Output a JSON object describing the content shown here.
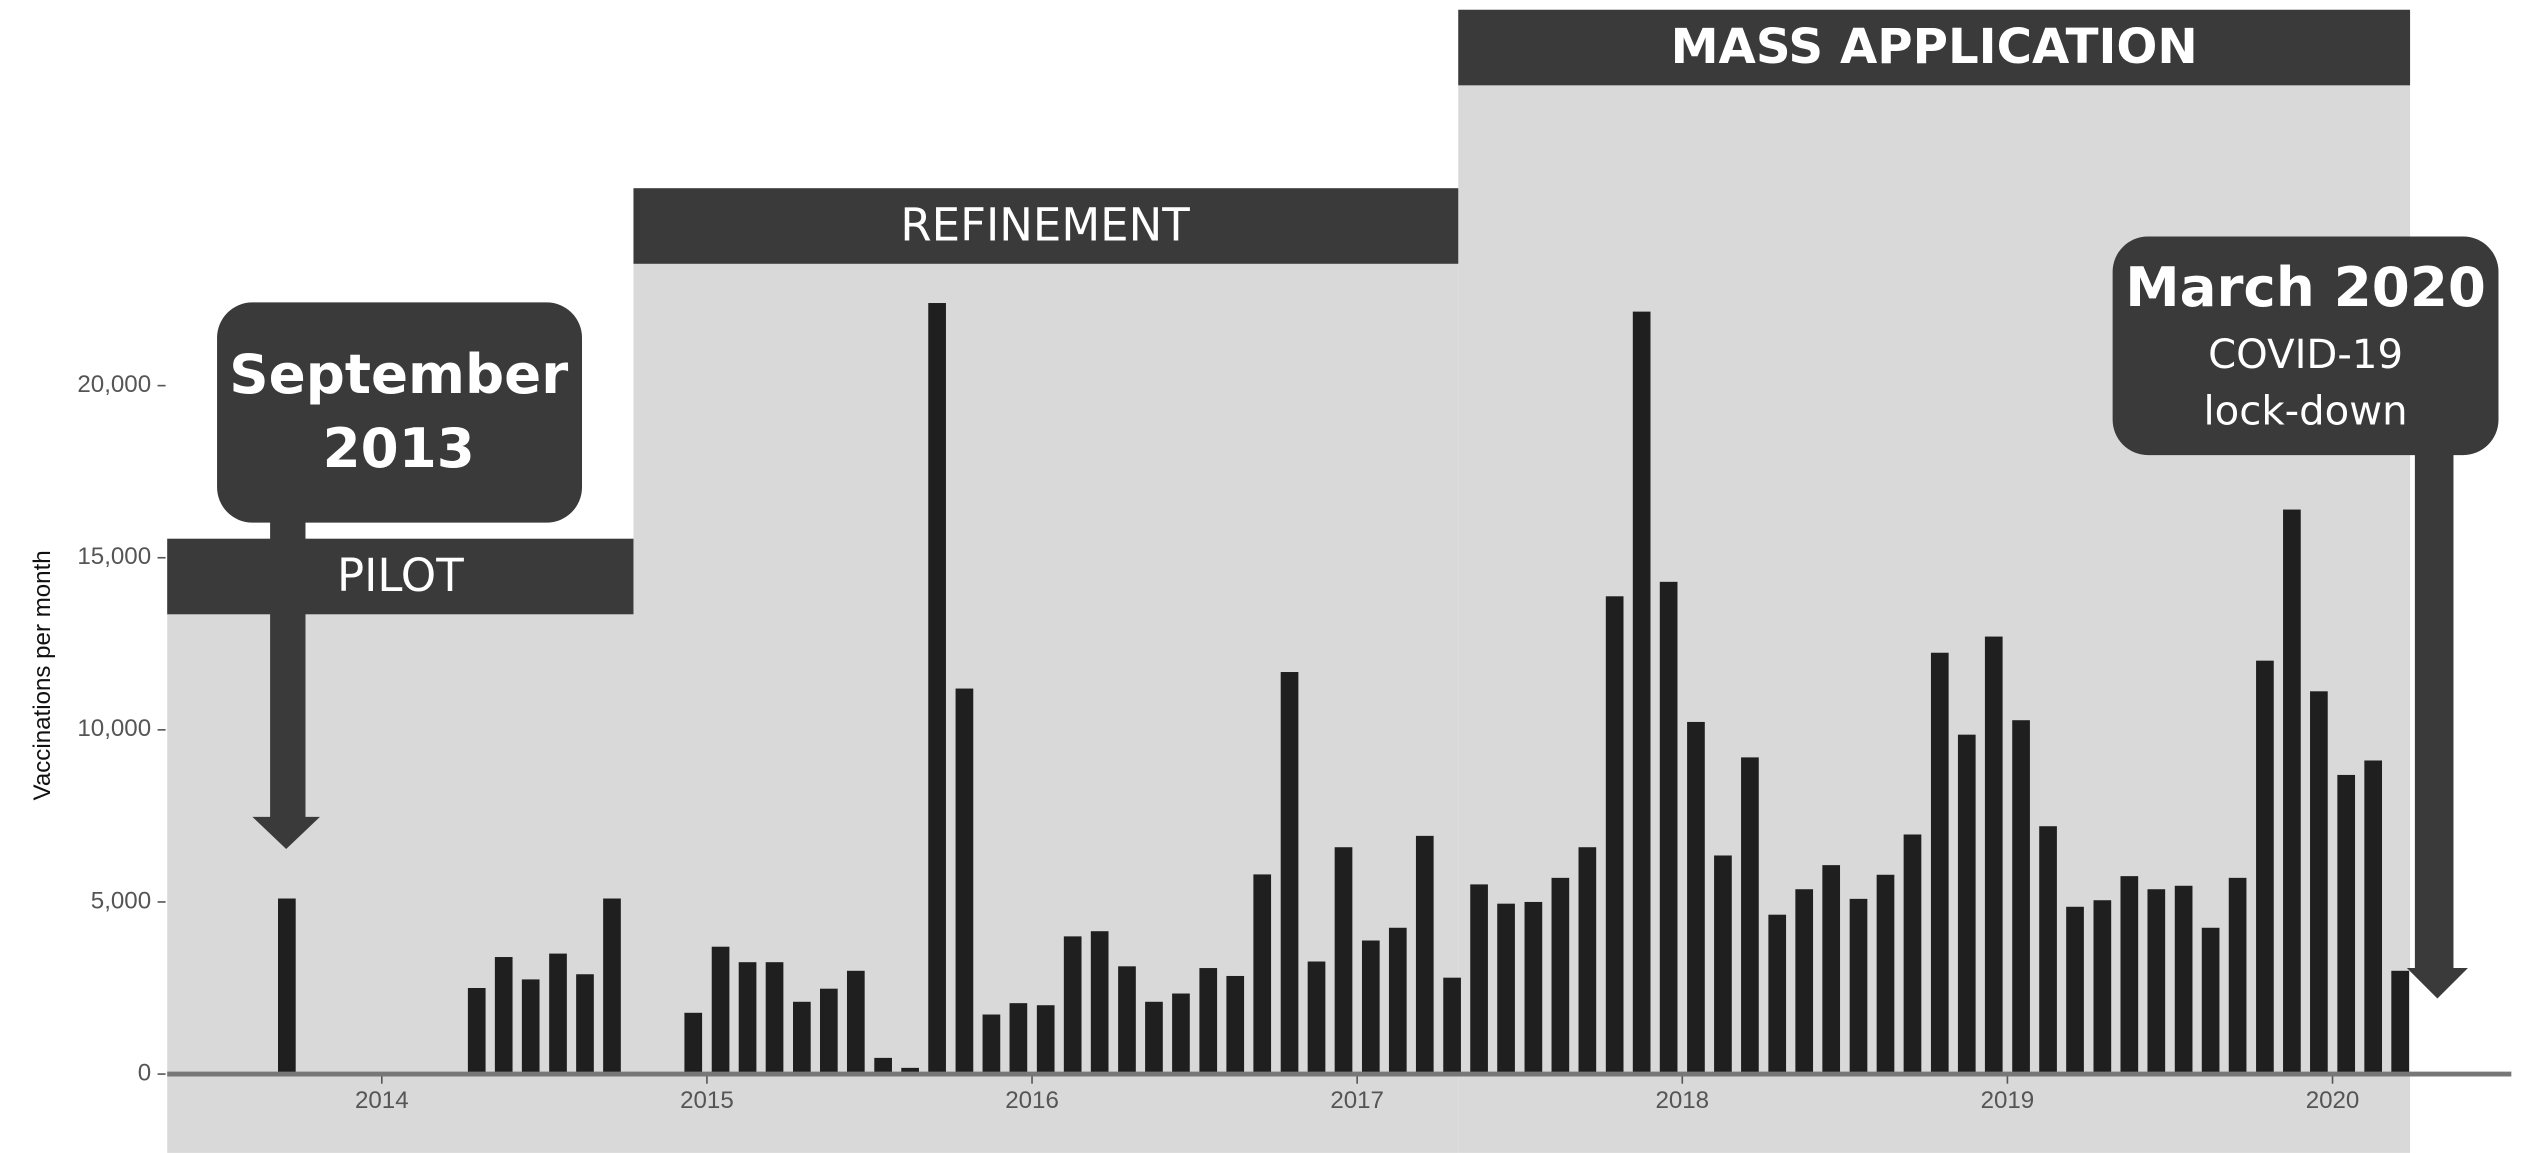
{
  "chart_data": {
    "type": "bar",
    "y_label": "Vaccinations per month",
    "x": [
      2013.708,
      2013.792,
      2013.875,
      2013.958,
      2014.042,
      2014.125,
      2014.208,
      2014.292,
      2014.375,
      2014.458,
      2014.542,
      2014.625,
      2014.708,
      2014.792,
      2014.875,
      2014.958,
      2015.042,
      2015.125,
      2015.208,
      2015.292,
      2015.375,
      2015.458,
      2015.542,
      2015.625,
      2015.708,
      2015.792,
      2015.875,
      2015.958,
      2016.042,
      2016.125,
      2016.208,
      2016.292,
      2016.375,
      2016.458,
      2016.542,
      2016.625,
      2016.708,
      2016.792,
      2016.875,
      2016.958,
      2017.042,
      2017.125,
      2017.208,
      2017.292,
      2017.375,
      2017.458,
      2017.542,
      2017.625,
      2017.708,
      2017.792,
      2017.875,
      2017.958,
      2018.042,
      2018.125,
      2018.208,
      2018.292,
      2018.375,
      2018.458,
      2018.542,
      2018.625,
      2018.708,
      2018.792,
      2018.875,
      2018.958,
      2019.042,
      2019.125,
      2019.208,
      2019.292,
      2019.375,
      2019.458,
      2019.542,
      2019.625,
      2019.708,
      2019.792,
      2019.875,
      2019.958,
      2020.042,
      2020.125,
      2020.208
    ],
    "values": [
      5100,
      0,
      0,
      0,
      0,
      0,
      0,
      2500,
      3400,
      2750,
      3500,
      2900,
      5100,
      0,
      0,
      1780,
      3700,
      3250,
      3250,
      2100,
      2480,
      3000,
      470,
      180,
      22400,
      11200,
      1730,
      2060,
      2000,
      4000,
      4150,
      3130,
      2100,
      2340,
      3080,
      2850,
      5800,
      11680,
      3270,
      6590,
      3880,
      4250,
      6920,
      2800,
      5510,
      4950,
      5000,
      5700,
      6590,
      13880,
      22150,
      14300,
      10230,
      6350,
      9200,
      4630,
      5370,
      6070,
      5090,
      5790,
      6960,
      12240,
      9860,
      12710,
      10280,
      7200,
      4860,
      5050,
      5750,
      5370,
      5470,
      4250,
      5700,
      12010,
      16400,
      11120,
      8690,
      9110,
      3000
    ],
    "color": "#1f1f1f",
    "xlim": [
      2013.34,
      2020.55
    ],
    "xticks": [
      2014,
      2015,
      2016,
      2017,
      2018,
      2019,
      2020
    ],
    "ylim": [
      -2290,
      31200
    ],
    "yticks": [
      0,
      {
        "value": 5000,
        "label": "5,000"
      },
      {
        "value": 10000,
        "label": "10,000"
      },
      {
        "value": 15000,
        "label": "15,000"
      },
      {
        "value": 20000,
        "label": "20,000"
      }
    ],
    "phases": [
      "PILOT",
      "REFINEMENT",
      "MASS APPLICATION"
    ],
    "callouts": [
      {
        "lines": [
          "September",
          "2013"
        ]
      },
      {
        "lines": [
          "March 2020",
          "COVID-19",
          "lock-down"
        ]
      }
    ]
  }
}
